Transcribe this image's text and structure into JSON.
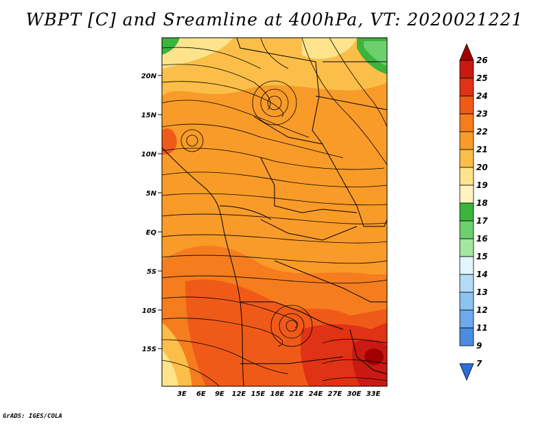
{
  "title": "WBPT [C] and Sreamline at 400hPa, VT: 2020021221",
  "credit": "GrADS: IGES/COLA",
  "map": {
    "variable": "Wet-bulb potential temperature",
    "units": "C",
    "level": "400hPa",
    "valid_time": "2020021221",
    "lat_labels": [
      "20N",
      "15N",
      "10N",
      "5N",
      "EQ",
      "5S",
      "10S",
      "15S"
    ],
    "lon_labels": [
      "3E",
      "6E",
      "9E",
      "12E",
      "15E",
      "18E",
      "21E",
      "24E",
      "27E",
      "30E",
      "33E"
    ]
  },
  "colorbar": {
    "levels": [
      "26",
      "25",
      "24",
      "23",
      "22",
      "21",
      "20",
      "19",
      "18",
      "17",
      "16",
      "15",
      "14",
      "13",
      "12",
      "11",
      "9",
      "7"
    ],
    "colors": [
      "#a00000",
      "#c81a12",
      "#e03214",
      "#f05a18",
      "#f57d1e",
      "#f89b28",
      "#fbbe48",
      "#fde38c",
      "#fff3c0",
      "#3cb43c",
      "#6ecf6e",
      "#a5e6a0",
      "#e1f5fa",
      "#b4dcf5",
      "#8cc3f0",
      "#6eaaeb",
      "#4b8ce1",
      "#2d6ed7"
    ]
  }
}
